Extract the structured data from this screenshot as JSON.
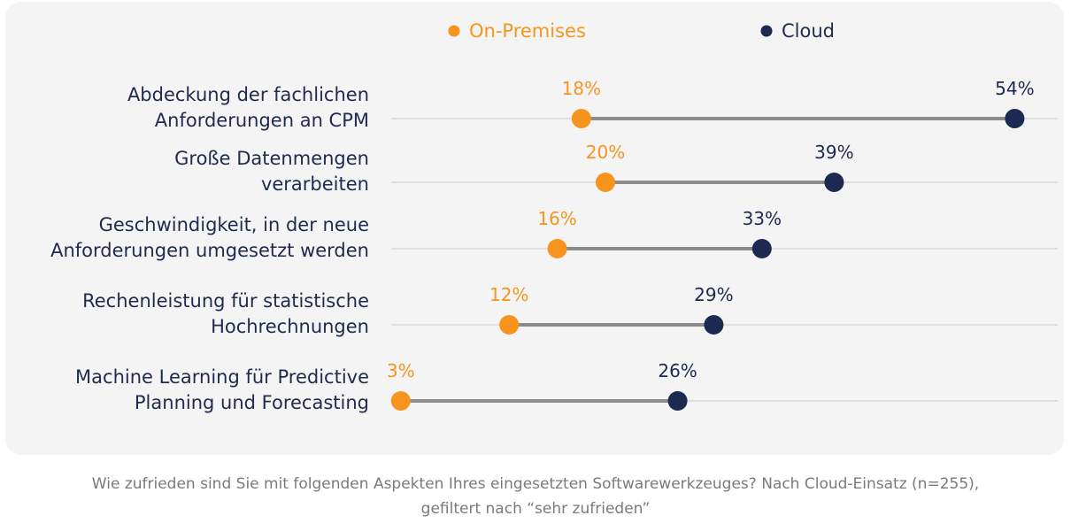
{
  "colors": {
    "on_premises": "#f7941d",
    "cloud": "#1c2951",
    "connector": "#8c8c8c",
    "gridline": "#dedede",
    "label_text": "#1f2b4d"
  },
  "chart_data": {
    "type": "dumbbell",
    "unit": "%",
    "xlim": [
      0,
      58
    ],
    "legend": [
      {
        "name": "On-Premises",
        "color": "#f7941d"
      },
      {
        "name": "Cloud",
        "color": "#1c2951"
      }
    ],
    "categories": [
      "Abdeckung der fachlichen\nAnforderungen an CPM",
      "Große Datenmengen\nverarbeiten",
      "Geschwindigkeit, in der neue\nAnforderungen umgesetzt werden",
      "Rechenleistung für statistische\nHochrechnungen",
      "Machine Learning für Predictive\nPlanning und Forecasting"
    ],
    "series": [
      {
        "name": "On-Premises",
        "values": [
          18,
          20,
          16,
          12,
          3
        ]
      },
      {
        "name": "Cloud",
        "values": [
          54,
          39,
          33,
          29,
          26
        ]
      }
    ]
  },
  "caption": {
    "line1": "Wie zufrieden sind Sie mit folgenden Aspekten Ihres eingesetzten Softwarewerkzeuges? Nach Cloud-Einsatz (n=255),",
    "line2": "gefiltert nach “sehr zufrieden”"
  }
}
